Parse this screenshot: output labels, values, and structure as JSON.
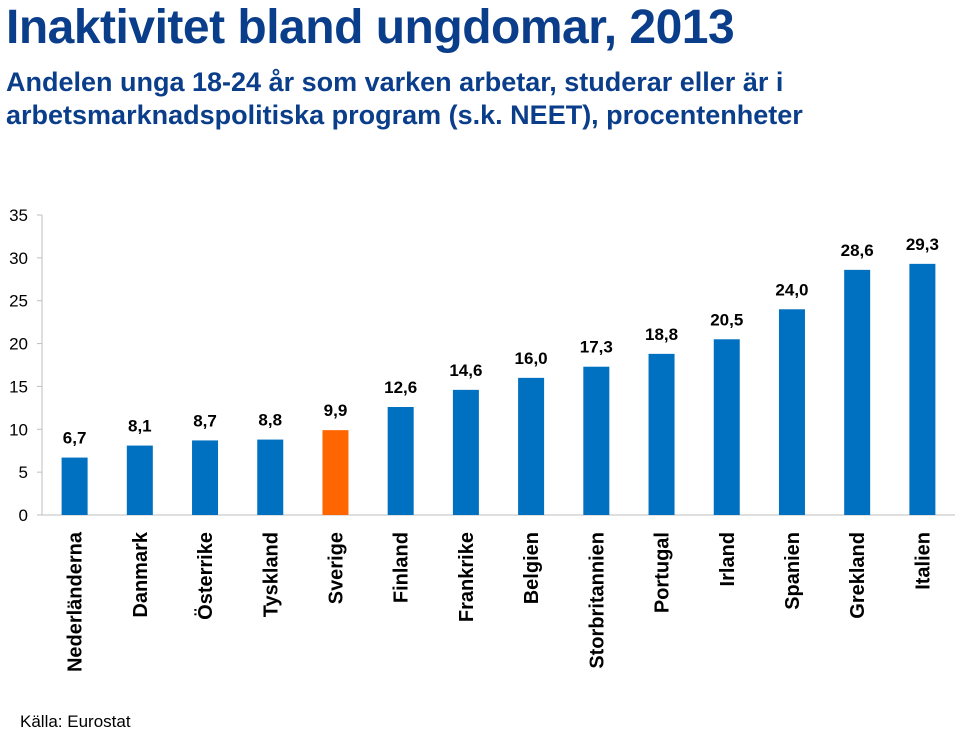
{
  "chart_data": {
    "type": "bar",
    "title": "Inaktivitet bland ungdomar, 2013",
    "subtitle": "Andelen unga 18-24 år som varken arbetar, studerar eller är i arbetsmarknadspolitiska program (s.k. NEET), procentenheter",
    "categories": [
      "Nederländerna",
      "Danmark",
      "Österrike",
      "Tyskland",
      "Sverige",
      "Finland",
      "Frankrike",
      "Belgien",
      "Storbritannien",
      "Portugal",
      "Irland",
      "Spanien",
      "Grekland",
      "Italien"
    ],
    "values": [
      6.7,
      8.1,
      8.7,
      8.8,
      9.9,
      12.6,
      14.6,
      16.0,
      17.3,
      18.8,
      20.5,
      24.0,
      28.6,
      29.3
    ],
    "data_labels": [
      "6,7",
      "8,1",
      "8,7",
      "8,8",
      "9,9",
      "12,6",
      "14,6",
      "16,0",
      "17,3",
      "18,8",
      "20,5",
      "24,0",
      "28,6",
      "29,3"
    ],
    "highlight_index": 4,
    "colors": {
      "bar": "#0070c0",
      "highlight": "#ff6600",
      "title": "#0b3e8a"
    },
    "ylim": [
      0,
      35
    ],
    "yticks": [
      0,
      5,
      10,
      15,
      20,
      25,
      30,
      35
    ],
    "xlabel": "",
    "ylabel": "",
    "source": "Källa: Eurostat"
  }
}
